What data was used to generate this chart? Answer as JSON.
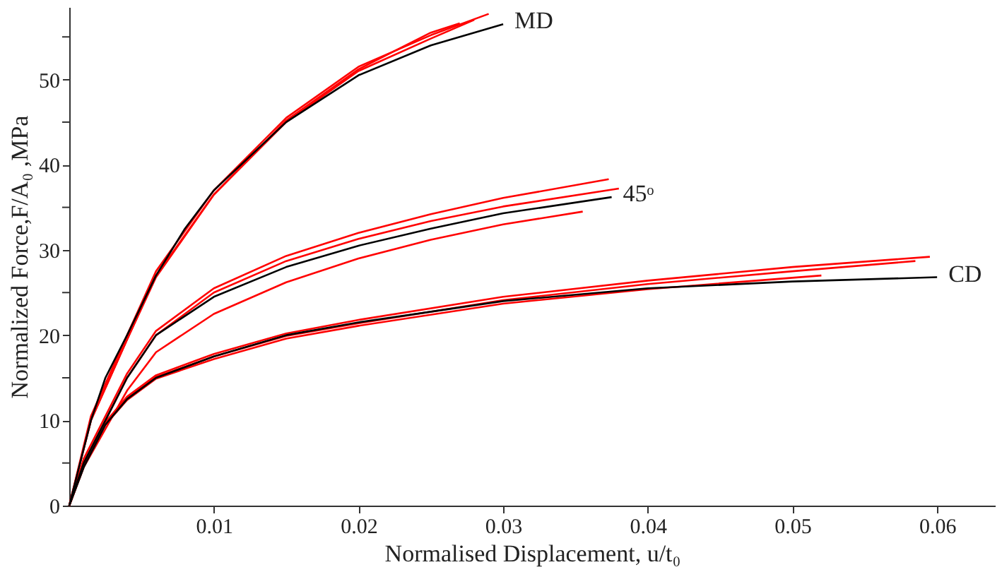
{
  "chart_data": {
    "type": "line",
    "xlabel": "Normalised Displacement, u/t₀",
    "ylabel": "Normalized Force,F/A₀ ,MPa",
    "xlim": [
      0,
      0.064
    ],
    "ylim": [
      0,
      58.5
    ],
    "xticks": [
      0.01,
      0.02,
      0.03,
      0.04,
      0.05,
      0.06
    ],
    "yticks": [
      0,
      {
        "value": 5,
        "label": null
      },
      10,
      {
        "value": 15,
        "label": null
      },
      20,
      {
        "value": 25,
        "label": null
      },
      30,
      {
        "value": 35,
        "label": null
      },
      40,
      {
        "value": 45,
        "label": null
      },
      50,
      {
        "value": 55,
        "label": null
      }
    ],
    "grid": false,
    "marker": "none",
    "line_style": "solid",
    "series": [
      {
        "color": "#ff0000",
        "x": [
          0,
          0.0015,
          0.004,
          0.006,
          0.01,
          0.015,
          0.02,
          0.025,
          0.029
        ],
        "values": [
          0,
          10.5,
          20,
          27.5,
          37,
          45.5,
          51.5,
          55.2,
          57.7
        ]
      },
      {
        "color": "#ff0000",
        "x": [
          0,
          0.0015,
          0.004,
          0.006,
          0.01,
          0.015,
          0.02,
          0.025,
          0.028
        ],
        "values": [
          0,
          10,
          19.5,
          27,
          36.5,
          45,
          51,
          54.8,
          57
        ]
      },
      {
        "color": "#ff0000",
        "x": [
          0,
          0.0015,
          0.004,
          0.006,
          0.01,
          0.015,
          0.02,
          0.025,
          0.027
        ],
        "values": [
          0,
          10,
          19.5,
          26.8,
          36.5,
          45.2,
          51.2,
          55.5,
          56.6
        ]
      },
      {
        "color": "#ff0000",
        "x": [
          0,
          0.001,
          0.0025,
          0.004,
          0.006,
          0.01,
          0.015,
          0.02,
          0.025,
          0.03,
          0.0373
        ],
        "values": [
          0,
          5.5,
          10.5,
          15.5,
          20.5,
          25.5,
          29.3,
          32,
          34.2,
          36.1,
          38.3
        ]
      },
      {
        "color": "#ff0000",
        "x": [
          0,
          0.001,
          0.0025,
          0.004,
          0.006,
          0.01,
          0.015,
          0.02,
          0.025,
          0.03,
          0.038
        ],
        "values": [
          0,
          5,
          10,
          15,
          20,
          25,
          28.7,
          31.3,
          33.4,
          35.1,
          37.2
        ]
      },
      {
        "color": "#ff0000",
        "x": [
          0,
          0.001,
          0.0025,
          0.004,
          0.006,
          0.01,
          0.015,
          0.02,
          0.025,
          0.03,
          0.0355
        ],
        "values": [
          0,
          4.5,
          9,
          13.5,
          18,
          22.5,
          26.2,
          29,
          31.2,
          33,
          34.5
        ]
      },
      {
        "color": "#ff0000",
        "x": [
          0,
          0.001,
          0.0025,
          0.004,
          0.006,
          0.01,
          0.015,
          0.02,
          0.03,
          0.04,
          0.05,
          0.0595
        ],
        "values": [
          0,
          4.8,
          9.8,
          12.8,
          15.3,
          17.8,
          20.2,
          21.8,
          24.5,
          26.4,
          28,
          29.2
        ]
      },
      {
        "color": "#ff0000",
        "x": [
          0,
          0.001,
          0.0025,
          0.004,
          0.006,
          0.01,
          0.015,
          0.02,
          0.03,
          0.04,
          0.05,
          0.0585
        ],
        "values": [
          0,
          4.7,
          9.6,
          12.6,
          15.1,
          17.5,
          19.9,
          21.4,
          24.1,
          26,
          27.5,
          28.7
        ]
      },
      {
        "color": "#ff0000",
        "x": [
          0,
          0.001,
          0.0025,
          0.004,
          0.006,
          0.01,
          0.015,
          0.02,
          0.03,
          0.04,
          0.052
        ],
        "values": [
          0,
          4.6,
          9.5,
          12.4,
          14.9,
          17.2,
          19.6,
          21.1,
          23.7,
          25.4,
          27.0
        ]
      },
      {
        "color": "#000000",
        "x": [
          0,
          0.0015,
          0.0025,
          0.004,
          0.006,
          0.008,
          0.01,
          0.015,
          0.02,
          0.025,
          0.03
        ],
        "values": [
          0,
          10,
          15,
          20,
          27,
          32.5,
          37,
          45,
          50.5,
          54,
          56.5
        ]
      },
      {
        "color": "#000000",
        "x": [
          0,
          0.001,
          0.0025,
          0.004,
          0.006,
          0.01,
          0.015,
          0.02,
          0.025,
          0.03,
          0.0375
        ],
        "values": [
          0,
          5,
          10,
          15,
          20,
          24.5,
          28,
          30.5,
          32.5,
          34.3,
          36.2
        ]
      },
      {
        "color": "#000000",
        "x": [
          0,
          0.001,
          0.0025,
          0.004,
          0.006,
          0.01,
          0.015,
          0.02,
          0.03,
          0.04,
          0.05,
          0.06
        ],
        "values": [
          0,
          4.5,
          9.5,
          12.5,
          15,
          17.5,
          20,
          21.5,
          24,
          25.5,
          26.3,
          26.8
        ]
      }
    ],
    "annotations": [
      "MD",
      "45ᵒ",
      "CD"
    ]
  }
}
